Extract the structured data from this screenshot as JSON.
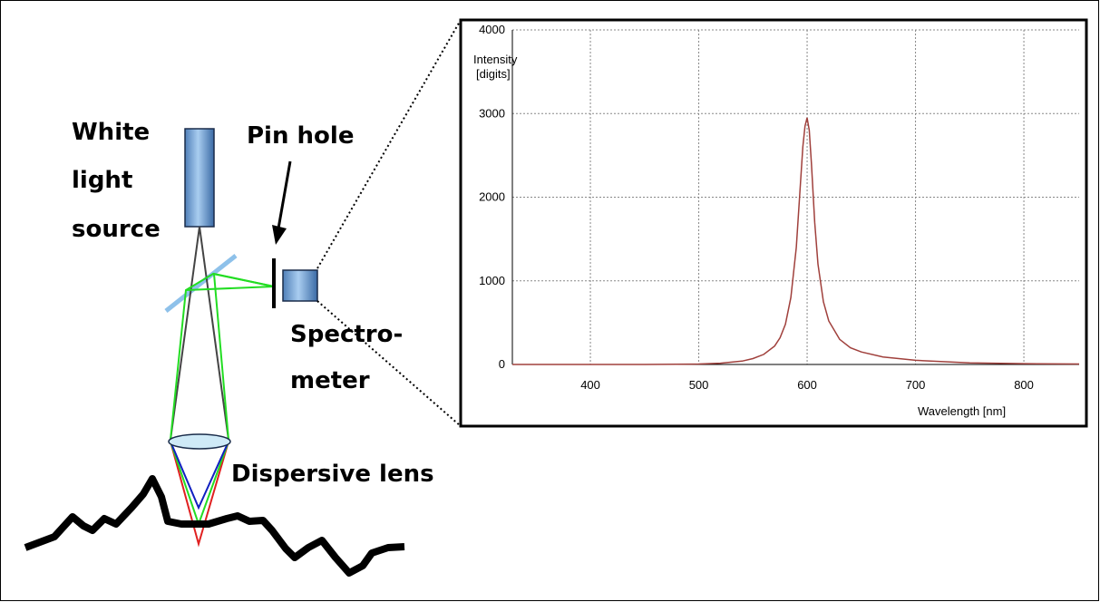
{
  "diagram": {
    "source_label": [
      "White",
      "light",
      "source"
    ],
    "pinhole_label": "Pin hole",
    "spectrometer_label": [
      "Spectro-",
      "meter"
    ],
    "lens_label": "Dispersive lens"
  },
  "chart_data": {
    "type": "line",
    "x_label": "Wavelength [nm]",
    "y_label": [
      "Intensity",
      "[digits]"
    ],
    "x": [
      328,
      350,
      400,
      450,
      500,
      520,
      540,
      550,
      560,
      570,
      575,
      580,
      585,
      590,
      593,
      596,
      598,
      600,
      602,
      604,
      607,
      610,
      615,
      620,
      630,
      640,
      650,
      670,
      700,
      750,
      800,
      851
    ],
    "values": [
      0,
      0,
      0,
      0,
      5,
      15,
      40,
      70,
      120,
      220,
      320,
      480,
      800,
      1400,
      2000,
      2600,
      2850,
      2950,
      2800,
      2400,
      1700,
      1200,
      750,
      520,
      300,
      200,
      150,
      90,
      50,
      20,
      10,
      5
    ],
    "color": "#a0403c",
    "xlim": [
      328,
      851
    ],
    "ylim": [
      0,
      4000
    ],
    "xticks": [
      400,
      500,
      600,
      700,
      800
    ],
    "yticks": [
      0,
      1000,
      2000,
      3000,
      4000
    ],
    "grid": true
  }
}
